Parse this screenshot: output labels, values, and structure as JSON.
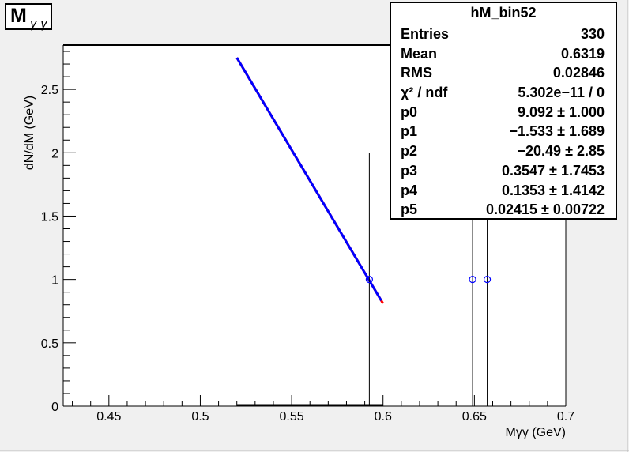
{
  "title": {
    "main": "M",
    "subscript": "γ γ"
  },
  "stats_box": {
    "name": "hM_bin52",
    "rows": [
      {
        "key": "Entries",
        "value": "330"
      },
      {
        "key": "Mean",
        "value": "0.6319"
      },
      {
        "key": "RMS",
        "value": "0.02846"
      },
      {
        "key": "χ² / ndf",
        "value": "5.302e−11 / 0"
      },
      {
        "key": "p0",
        "value": "9.092 ± 1.000"
      },
      {
        "key": "p1",
        "value": "−1.533 ± 1.689"
      },
      {
        "key": "p2",
        "value": "−20.49 ± 2.85"
      },
      {
        "key": "p3",
        "value": "0.3547 ± 1.7453"
      },
      {
        "key": "p4",
        "value": "0.1353 ± 1.4142"
      },
      {
        "key": "p5",
        "value": "0.02415 ± 0.00722"
      }
    ]
  },
  "chart_data": {
    "type": "scatter",
    "title": "Mγ γ",
    "xlabel": "Mγγ (GeV)",
    "ylabel": "dN/dM (GeV)",
    "xlim": [
      0.425,
      0.7
    ],
    "ylim": [
      0,
      2.85
    ],
    "x_ticks": [
      "0.45",
      "0.5",
      "0.55",
      "0.6",
      "0.65",
      "0.7"
    ],
    "y_ticks": [
      "0",
      "0.5",
      "1",
      "1.5",
      "2",
      "2.5"
    ],
    "points": [
      {
        "x": 0.5925,
        "y": 1,
        "err_low": 1,
        "err_high": 1
      },
      {
        "x": 0.649,
        "y": 1,
        "err_low": 1,
        "err_high": 1
      },
      {
        "x": 0.657,
        "y": 1,
        "err_low": 1,
        "err_high": 1
      }
    ],
    "fit_curve": {
      "x_range": [
        0.52,
        0.6
      ],
      "y_start": 2.75,
      "y_end": 0.81
    },
    "background_segment": {
      "x_range": [
        0.52,
        0.6
      ],
      "y": 0
    },
    "colors": {
      "points": "#0000ff",
      "fit": "#0000ff",
      "fit_edge": "#ff0000",
      "axes": "#000000"
    }
  }
}
